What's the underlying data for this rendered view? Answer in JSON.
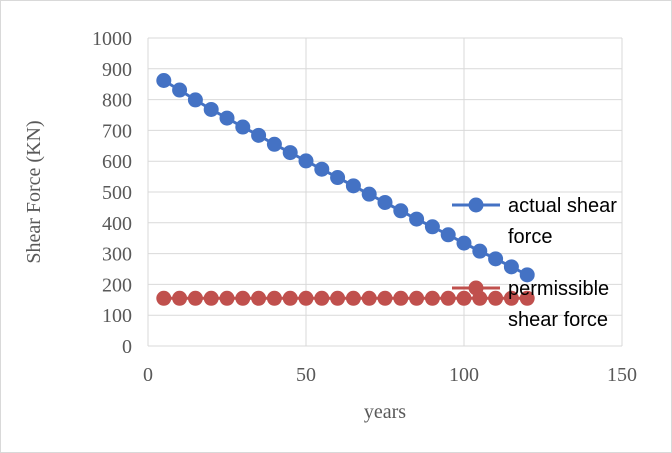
{
  "chart_data": {
    "type": "scatter",
    "title": "",
    "xlabel": "years",
    "ylabel": "Shear Force (KN)",
    "xlim": [
      0,
      150
    ],
    "ylim": [
      0,
      1000
    ],
    "xticks": [
      0,
      50,
      100,
      150
    ],
    "yticks": [
      0,
      100,
      200,
      300,
      400,
      500,
      600,
      700,
      800,
      900,
      1000
    ],
    "grid": true,
    "legend_position": "right",
    "series": [
      {
        "name": "actual shear force",
        "legend_lines": [
          "actual shear",
          "force"
        ],
        "color": "#4472C4",
        "x": [
          5,
          10,
          15,
          20,
          25,
          30,
          35,
          40,
          45,
          50,
          55,
          60,
          65,
          70,
          75,
          80,
          85,
          90,
          95,
          100,
          105,
          110,
          115,
          120
        ],
        "y": [
          862,
          831,
          799,
          768,
          740,
          711,
          684,
          655,
          628,
          601,
          574,
          547,
          520,
          493,
          466,
          439,
          412,
          387,
          361,
          334,
          308,
          283,
          257,
          231
        ]
      },
      {
        "name": "permissible shear force",
        "legend_lines": [
          "permissible",
          "shear force"
        ],
        "color": "#C0504D",
        "x": [
          5,
          10,
          15,
          20,
          25,
          30,
          35,
          40,
          45,
          50,
          55,
          60,
          65,
          70,
          75,
          80,
          85,
          90,
          95,
          100,
          105,
          110,
          115,
          120
        ],
        "y": [
          155,
          155,
          155,
          155,
          155,
          155,
          155,
          155,
          155,
          155,
          155,
          155,
          155,
          155,
          155,
          155,
          155,
          155,
          155,
          155,
          155,
          155,
          155,
          155
        ]
      }
    ]
  }
}
